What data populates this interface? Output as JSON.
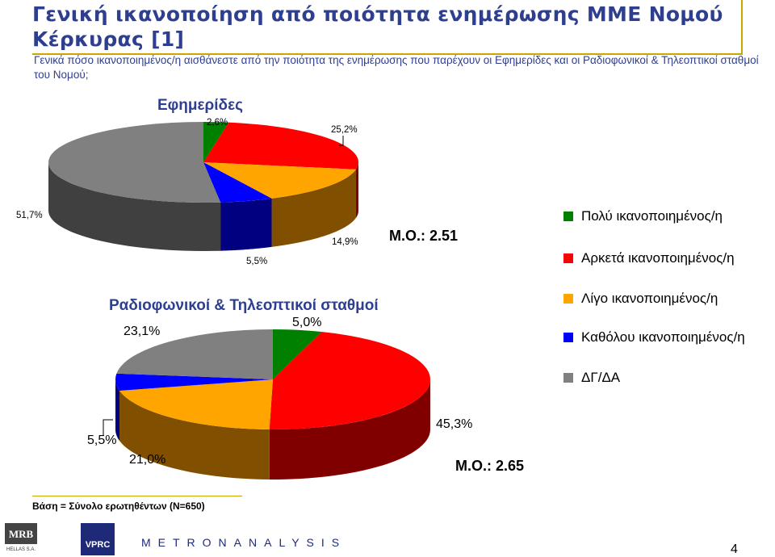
{
  "title": "Γενική ικανοποίηση από ποιότητα ενημέρωσης ΜΜΕ Νομού Κέρκυρας [1]",
  "subtitle": "Γενικά πόσο ικανοποιημένος/η αισθάνεστε από την ποιότητα της ενημέρωσης που παρέχουν οι Εφημερίδες και οι Ραδιοφωνικοί & Τηλεοπτικοί σταθμοί του Νομού;",
  "legend": [
    {
      "label": "Πολύ ικανοποιημένος/η",
      "color": "#008000"
    },
    {
      "label": "Αρκετά ικανοποιημένος/η",
      "color": "#ff0000"
    },
    {
      "label": "Λίγο ικανοποιημένος/η",
      "color": "#ffa500"
    },
    {
      "label": "Καθόλου ικανοποιημένος/η",
      "color": "#0000ff"
    },
    {
      "label": "ΔΓ/ΔΑ",
      "color": "#808080"
    }
  ],
  "chart_data": [
    {
      "type": "pie",
      "title": "Εφημερίδες",
      "categories": [
        "Πολύ ικανοποιημένος/η",
        "Αρκετά ικανοποιημένος/η",
        "Λίγο ικανοποιημένος/η",
        "Καθόλου ικανοποιημένος/η",
        "ΔΓ/ΔΑ"
      ],
      "values": [
        2.6,
        25.2,
        14.9,
        5.5,
        51.7
      ],
      "value_labels": [
        "2,6%",
        "25,2%",
        "14,9%",
        "5,5%",
        "51,7%"
      ],
      "annotation": "Μ.Ο.: 2.51"
    },
    {
      "type": "pie",
      "title": "Ραδιοφωνικοί & Τηλεοπτικοί σταθμοί",
      "categories": [
        "Πολύ ικανοποιημένος/η",
        "Αρκετά ικανοποιημένος/η",
        "Λίγο ικανοποιημένος/η",
        "Καθόλου ικανοποιημένος/η",
        "ΔΓ/ΔΑ"
      ],
      "values": [
        5.0,
        45.3,
        21.0,
        5.5,
        23.1
      ],
      "value_labels": [
        "5,0%",
        "45,3%",
        "21,0%",
        "5,5%",
        "23,1%"
      ],
      "annotation": "Μ.Ο.: 2.65"
    }
  ],
  "colors": {
    "front": [
      "#008000",
      "#ff0000",
      "#ffa500",
      "#0000ff",
      "#808080"
    ],
    "side": [
      "#004000",
      "#800000",
      "#805000",
      "#000080",
      "#404040"
    ]
  },
  "footer": {
    "base": "Βάση = Σύνολο ερωτηθέντων (N=650)",
    "logo_mrb": "MRB HELLAS S.A.",
    "logo_vprc": "VPRC",
    "logo_metron": "METRONANALYSIS",
    "page_number": "4"
  }
}
